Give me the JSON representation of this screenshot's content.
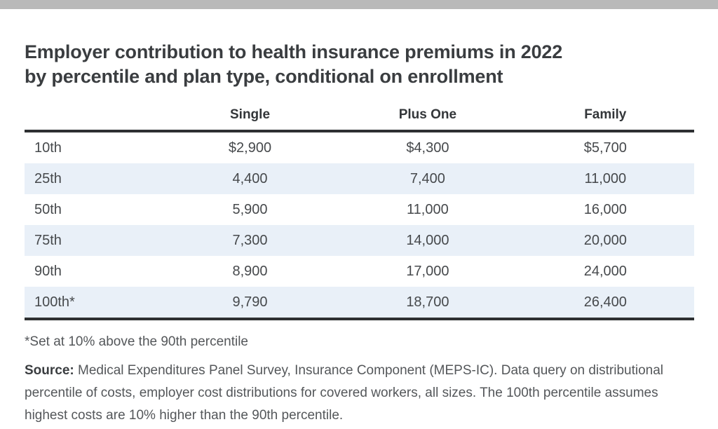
{
  "colors": {
    "top_bar": "#b9b9b9",
    "background": "#ffffff",
    "row_stripe": "#e9f0f8",
    "table_rule": "#2e3032",
    "title_text": "#3a3d40",
    "body_text": "#46494c",
    "note_text": "#54575a"
  },
  "header": {
    "title_line1": "Employer contribution to health insurance premiums in 2022",
    "title_line2": "by percentile and plan type, conditional on enrollment"
  },
  "chart_data": {
    "type": "table",
    "title": "Employer contribution to health insurance premiums in 2022 by percentile and plan type, conditional on enrollment",
    "columns": [
      "Single",
      "Plus One",
      "Family"
    ],
    "row_labels": [
      "10th",
      "25th",
      "50th",
      "75th",
      "90th",
      "100th*"
    ],
    "rows": [
      [
        "$2,900",
        "$4,300",
        "$5,700"
      ],
      [
        "4,400",
        "7,400",
        "11,000"
      ],
      [
        "5,900",
        "11,000",
        "16,000"
      ],
      [
        "7,300",
        "14,000",
        "20,000"
      ],
      [
        "8,900",
        "17,000",
        "24,000"
      ],
      [
        "9,790",
        "18,700",
        "26,400"
      ]
    ],
    "footnote": "*Set at 10% above the 90th percentile",
    "source_label": "Source:",
    "source_text": "Medical Expenditures Panel Survey, Insurance Component (MEPS-IC). Data query on distributional percentile of costs, employer cost distributions for covered workers, all sizes. The 100th percentile assumes highest costs are 10% higher than the 90th percentile."
  }
}
